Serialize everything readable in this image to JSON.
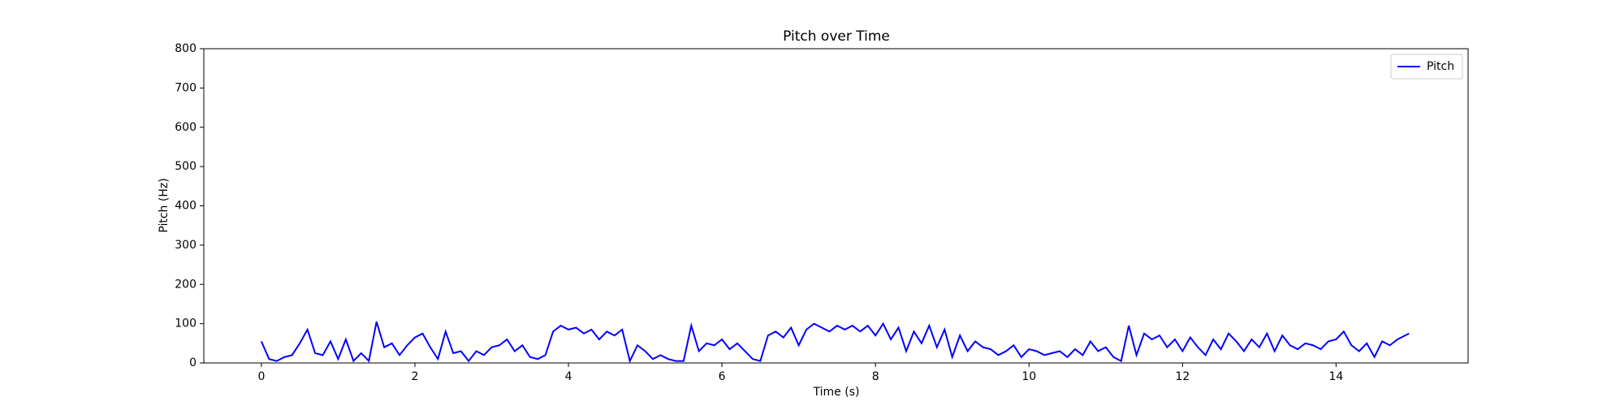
{
  "chart_data": {
    "type": "line",
    "title": "Pitch over Time",
    "x_label": "Time (s)",
    "y_label": "Pitch (Hz)",
    "x": [
      0.0,
      0.1,
      0.2,
      0.3,
      0.4,
      0.5,
      0.6,
      0.7,
      0.8,
      0.9,
      1.0,
      1.1,
      1.2,
      1.3,
      1.4,
      1.5,
      1.6,
      1.7,
      1.8,
      1.9,
      2.0,
      2.1,
      2.2,
      2.3,
      2.4,
      2.5,
      2.6,
      2.7,
      2.8,
      2.9,
      3.0,
      3.1,
      3.2,
      3.3,
      3.4,
      3.5,
      3.6,
      3.7,
      3.8,
      3.9,
      4.0,
      4.1,
      4.2,
      4.3,
      4.4,
      4.5,
      4.6,
      4.7,
      4.8,
      4.9,
      5.0,
      5.1,
      5.2,
      5.3,
      5.4,
      5.5,
      5.6,
      5.7,
      5.8,
      5.9,
      6.0,
      6.1,
      6.2,
      6.3,
      6.4,
      6.5,
      6.6,
      6.7,
      6.8,
      6.9,
      7.0,
      7.1,
      7.2,
      7.3,
      7.4,
      7.5,
      7.6,
      7.7,
      7.8,
      7.9,
      8.0,
      8.1,
      8.2,
      8.3,
      8.4,
      8.5,
      8.6,
      8.7,
      8.8,
      8.9,
      9.0,
      9.1,
      9.2,
      9.3,
      9.4,
      9.5,
      9.6,
      9.7,
      9.8,
      9.9,
      10.0,
      10.1,
      10.2,
      10.3,
      10.4,
      10.5,
      10.6,
      10.7,
      10.8,
      10.9,
      11.0,
      11.1,
      11.2,
      11.3,
      11.4,
      11.5,
      11.6,
      11.7,
      11.8,
      11.9,
      12.0,
      12.1,
      12.2,
      12.3,
      12.4,
      12.5,
      12.6,
      12.7,
      12.8,
      12.9,
      13.0,
      13.1,
      13.2,
      13.3,
      13.4,
      13.5,
      13.6,
      13.7,
      13.8,
      13.9,
      14.0,
      14.1,
      14.2,
      14.3,
      14.4,
      14.5,
      14.6,
      14.7,
      14.8,
      14.9,
      14.95
    ],
    "series": [
      {
        "name": "Pitch",
        "color": "#0000ff",
        "values": [
          55,
          10,
          5,
          15,
          20,
          50,
          85,
          25,
          20,
          55,
          10,
          60,
          5,
          25,
          5,
          105,
          40,
          50,
          20,
          45,
          65,
          75,
          40,
          10,
          80,
          25,
          30,
          5,
          30,
          20,
          40,
          45,
          60,
          30,
          45,
          15,
          10,
          20,
          80,
          95,
          85,
          90,
          75,
          85,
          60,
          80,
          70,
          85,
          5,
          45,
          30,
          10,
          20,
          10,
          5,
          5,
          95,
          30,
          50,
          45,
          60,
          35,
          50,
          30,
          10,
          5,
          70,
          80,
          65,
          90,
          45,
          85,
          100,
          90,
          80,
          95,
          85,
          95,
          80,
          95,
          70,
          100,
          60,
          90,
          30,
          80,
          50,
          95,
          40,
          85,
          15,
          70,
          30,
          55,
          40,
          35,
          20,
          30,
          45,
          15,
          35,
          30,
          20,
          25,
          30,
          15,
          35,
          20,
          55,
          30,
          40,
          15,
          5,
          95,
          20,
          75,
          60,
          70,
          40,
          60,
          30,
          65,
          40,
          20,
          60,
          35,
          75,
          55,
          30,
          60,
          40,
          75,
          30,
          70,
          45,
          35,
          50,
          45,
          35,
          55,
          60,
          80,
          45,
          30,
          50,
          15,
          55,
          45,
          60,
          70,
          75
        ]
      }
    ],
    "xlim": [
      -0.75,
      15.72
    ],
    "ylim": [
      0,
      800
    ],
    "xticks": [
      0,
      2,
      4,
      6,
      8,
      10,
      12,
      14
    ],
    "yticks": [
      0,
      100,
      200,
      300,
      400,
      500,
      600,
      700,
      800
    ],
    "legend": "upper right"
  }
}
